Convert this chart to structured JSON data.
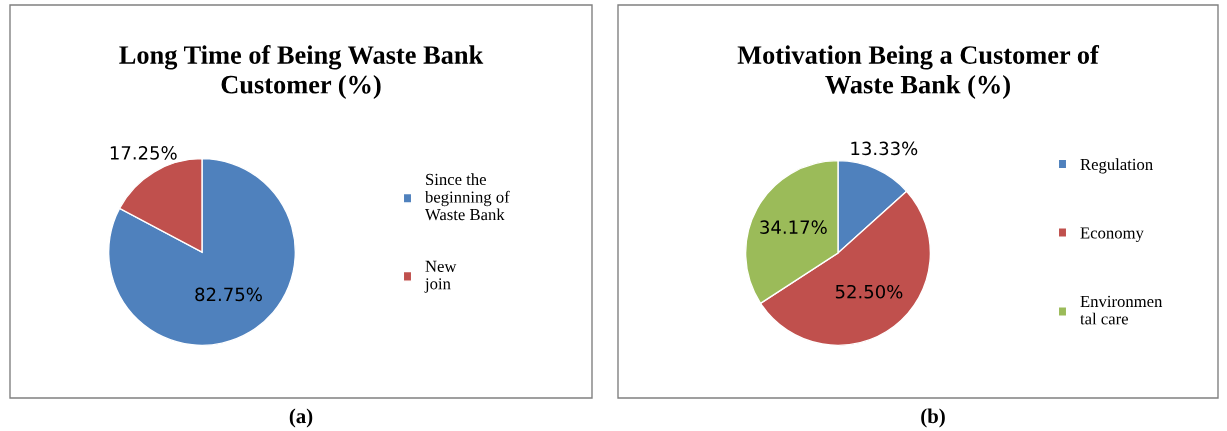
{
  "chart_data": [
    {
      "type": "pie",
      "title": "Long Time of Being Waste Bank\nCustomer (%)",
      "categories": [
        "Since the\nbeginning of\nWaste Bank",
        "New\njoin"
      ],
      "values": [
        82.75,
        17.25
      ],
      "colors": [
        "#4f81bd",
        "#c0504d"
      ],
      "value_labels": [
        "82.75%",
        "17.25%"
      ],
      "legend": "right",
      "annotations": [
        "(a)"
      ]
    },
    {
      "type": "pie",
      "title": "Motivation Being a Customer of\nWaste Bank (%)",
      "categories": [
        "Regulation",
        "Economy",
        "Environmen\ntal care"
      ],
      "values": [
        13.33,
        52.5,
        34.17
      ],
      "colors": [
        "#4f81bd",
        "#c0504d",
        "#9bbb59"
      ],
      "value_labels": [
        "13.33%",
        "52.50%",
        "34.17%"
      ],
      "legend": "right",
      "annotations": [
        "(b)"
      ]
    }
  ]
}
